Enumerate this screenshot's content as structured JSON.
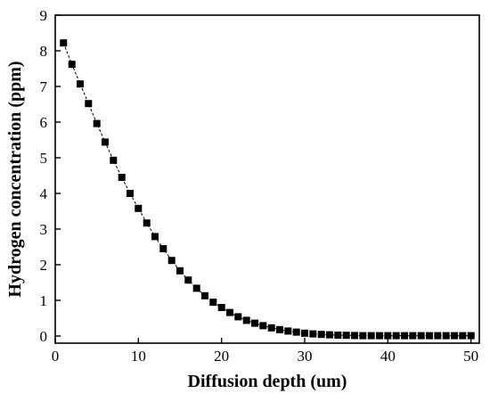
{
  "chart_data": {
    "type": "scatter",
    "title": "",
    "xlabel": "Diffusion depth (um)",
    "ylabel": "Hydrogen concentration (ppm)",
    "xlim": [
      0,
      51
    ],
    "ylim": [
      -0.2,
      9
    ],
    "xticks": [
      0,
      10,
      20,
      30,
      40,
      50
    ],
    "yticks": [
      0,
      1,
      2,
      3,
      4,
      5,
      6,
      7,
      8,
      9
    ],
    "grid": false,
    "legend": "none",
    "marker": "square",
    "line_style": "dashed",
    "color": "#000000",
    "series": [
      {
        "x": [
          1,
          2,
          3,
          4,
          5,
          6,
          7,
          8,
          9,
          10,
          11,
          12,
          13,
          14,
          15,
          16,
          17,
          18,
          19,
          20,
          21,
          22,
          23,
          24,
          25,
          26,
          27,
          28,
          29,
          30,
          31,
          32,
          33,
          34,
          35,
          36,
          37,
          38,
          39,
          40,
          41,
          42,
          43,
          44,
          45,
          46,
          47,
          48,
          49,
          50
        ],
        "y": [
          8.22,
          7.62,
          7.07,
          6.52,
          5.96,
          5.44,
          4.93,
          4.45,
          4.0,
          3.58,
          3.17,
          2.79,
          2.45,
          2.12,
          1.83,
          1.57,
          1.34,
          1.13,
          0.95,
          0.8,
          0.66,
          0.54,
          0.44,
          0.36,
          0.29,
          0.23,
          0.18,
          0.14,
          0.11,
          0.08,
          0.06,
          0.045,
          0.035,
          0.025,
          0.02,
          0.015,
          0.01,
          0.01,
          0.01,
          0.01,
          0.01,
          0.01,
          0.01,
          0.01,
          0.01,
          0.01,
          0.01,
          0.01,
          0.01,
          0.01
        ]
      }
    ]
  }
}
